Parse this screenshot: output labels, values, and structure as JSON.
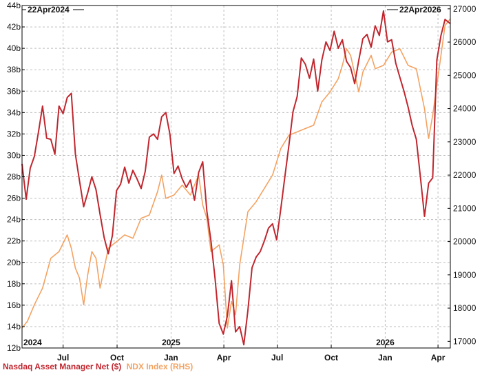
{
  "colors": {
    "left_series": "#c0262e",
    "right_series": "#f4a261",
    "grid": "#bdbdbd",
    "frame": "#000000"
  },
  "header": {
    "start_date": "22Apr2024",
    "end_date": "22Apr2026"
  },
  "chart_data": {
    "type": "line",
    "title": "",
    "xlabel": "",
    "x_range": [
      "2024-04-22",
      "2026-04-22"
    ],
    "x_ticks": [
      {
        "date": "2024-07-01",
        "label": "Jul"
      },
      {
        "date": "2024-10-01",
        "label": "Oct"
      },
      {
        "date": "2025-01-01",
        "label": "Jan"
      },
      {
        "date": "2025-04-01",
        "label": "Apr"
      },
      {
        "date": "2025-07-01",
        "label": "Jul"
      },
      {
        "date": "2025-10-01",
        "label": "Oct"
      },
      {
        "date": "2026-01-01",
        "label": "Jan"
      },
      {
        "date": "2026-04-01",
        "label": "Apr"
      }
    ],
    "year_labels": [
      {
        "date": "2024-04-22",
        "label": "2024"
      },
      {
        "date": "2025-01-01",
        "label": "2025"
      },
      {
        "date": "2026-01-01",
        "label": "2026"
      }
    ],
    "left_axis": {
      "ylim": [
        12,
        44
      ],
      "ticks": [
        12,
        14,
        16,
        18,
        20,
        22,
        24,
        26,
        28,
        30,
        32,
        34,
        36,
        38,
        40,
        42,
        44
      ],
      "tick_labels": [
        "12b",
        "14b",
        "16b",
        "18b",
        "20b",
        "22b",
        "24b",
        "26b",
        "28b",
        "30b",
        "32b",
        "34b",
        "36b",
        "38b",
        "40b",
        "42b",
        "44b"
      ]
    },
    "right_axis": {
      "ylim": [
        16800,
        27100
      ],
      "ticks": [
        17000,
        18000,
        19000,
        20000,
        21000,
        22000,
        23000,
        24000,
        25000,
        26000,
        27000
      ],
      "tick_labels": [
        "17000",
        "18000",
        "19000",
        "20000",
        "21000",
        "22000",
        "23000",
        "24000",
        "25000",
        "26000",
        "27000"
      ]
    },
    "grid": true,
    "legend_position": "bottom-left",
    "series": [
      {
        "name": "Nasdaq Asset Manager Net ($)",
        "axis": "left",
        "color": "#c0262e",
        "points": [
          [
            "2024-04-22",
            29.2
          ],
          [
            "2024-04-29",
            25.9
          ],
          [
            "2024-05-06",
            28.8
          ],
          [
            "2024-05-13",
            29.9
          ],
          [
            "2024-05-20",
            32.2
          ],
          [
            "2024-05-27",
            34.6
          ],
          [
            "2024-06-03",
            31.6
          ],
          [
            "2024-06-10",
            31.5
          ],
          [
            "2024-06-17",
            30.1
          ],
          [
            "2024-06-24",
            34.6
          ],
          [
            "2024-07-01",
            33.9
          ],
          [
            "2024-07-08",
            35.4
          ],
          [
            "2024-07-15",
            35.8
          ],
          [
            "2024-07-22",
            30.1
          ],
          [
            "2024-07-29",
            27.6
          ],
          [
            "2024-08-05",
            25.2
          ],
          [
            "2024-08-12",
            26.5
          ],
          [
            "2024-08-19",
            28.0
          ],
          [
            "2024-08-26",
            26.8
          ],
          [
            "2024-09-02",
            24.5
          ],
          [
            "2024-09-09",
            22.3
          ],
          [
            "2024-09-16",
            20.8
          ],
          [
            "2024-09-23",
            22.5
          ],
          [
            "2024-09-30",
            26.7
          ],
          [
            "2024-10-07",
            27.3
          ],
          [
            "2024-10-14",
            28.9
          ],
          [
            "2024-10-21",
            27.4
          ],
          [
            "2024-10-28",
            28.6
          ],
          [
            "2024-11-04",
            27.8
          ],
          [
            "2024-11-11",
            26.9
          ],
          [
            "2024-11-18",
            28.5
          ],
          [
            "2024-11-25",
            31.7
          ],
          [
            "2024-12-02",
            32.0
          ],
          [
            "2024-12-09",
            31.5
          ],
          [
            "2024-12-16",
            33.6
          ],
          [
            "2024-12-23",
            34.0
          ],
          [
            "2024-12-30",
            32.0
          ],
          [
            "2025-01-06",
            28.3
          ],
          [
            "2025-01-13",
            29.0
          ],
          [
            "2025-01-20",
            27.8
          ],
          [
            "2025-01-27",
            27.0
          ],
          [
            "2025-02-03",
            27.7
          ],
          [
            "2025-02-10",
            25.8
          ],
          [
            "2025-02-17",
            28.4
          ],
          [
            "2025-02-24",
            29.4
          ],
          [
            "2025-03-03",
            24.8
          ],
          [
            "2025-03-10",
            22.0
          ],
          [
            "2025-03-17",
            18.5
          ],
          [
            "2025-03-24",
            14.3
          ],
          [
            "2025-03-31",
            13.3
          ],
          [
            "2025-04-07",
            15.0
          ],
          [
            "2025-04-14",
            18.3
          ],
          [
            "2025-04-21",
            13.5
          ],
          [
            "2025-04-28",
            14.0
          ],
          [
            "2025-05-05",
            12.3
          ],
          [
            "2025-05-12",
            15.5
          ],
          [
            "2025-05-19",
            19.5
          ],
          [
            "2025-05-26",
            20.5
          ],
          [
            "2025-06-02",
            21.0
          ],
          [
            "2025-06-09",
            22.0
          ],
          [
            "2025-06-16",
            23.2
          ],
          [
            "2025-06-23",
            23.6
          ],
          [
            "2025-06-30",
            22.1
          ],
          [
            "2025-07-07",
            25.0
          ],
          [
            "2025-07-14",
            28.0
          ],
          [
            "2025-07-21",
            31.0
          ],
          [
            "2025-07-28",
            34.1
          ],
          [
            "2025-08-04",
            35.5
          ],
          [
            "2025-08-11",
            39.1
          ],
          [
            "2025-08-18",
            38.5
          ],
          [
            "2025-08-25",
            37.2
          ],
          [
            "2025-09-01",
            39.0
          ],
          [
            "2025-09-08",
            36.0
          ],
          [
            "2025-09-15",
            38.9
          ],
          [
            "2025-09-22",
            40.6
          ],
          [
            "2025-09-29",
            39.8
          ],
          [
            "2025-10-06",
            41.6
          ],
          [
            "2025-10-13",
            40.0
          ],
          [
            "2025-10-20",
            40.8
          ],
          [
            "2025-10-27",
            38.8
          ],
          [
            "2025-11-03",
            38.2
          ],
          [
            "2025-11-10",
            36.7
          ],
          [
            "2025-11-17",
            38.9
          ],
          [
            "2025-11-24",
            40.9
          ],
          [
            "2025-12-01",
            41.3
          ],
          [
            "2025-12-08",
            40.1
          ],
          [
            "2025-12-15",
            42.1
          ],
          [
            "2025-12-22",
            41.2
          ],
          [
            "2025-12-29",
            43.5
          ],
          [
            "2026-01-05",
            40.6
          ],
          [
            "2026-01-12",
            40.8
          ],
          [
            "2026-01-19",
            38.6
          ],
          [
            "2026-01-26",
            37.3
          ],
          [
            "2026-02-02",
            36.0
          ],
          [
            "2026-02-09",
            34.5
          ],
          [
            "2026-02-16",
            32.8
          ],
          [
            "2026-02-23",
            31.5
          ],
          [
            "2026-03-02",
            28.0
          ],
          [
            "2026-03-09",
            24.3
          ],
          [
            "2026-03-16",
            27.4
          ],
          [
            "2026-03-23",
            27.9
          ],
          [
            "2026-03-30",
            38.9
          ],
          [
            "2026-04-06",
            41.2
          ],
          [
            "2026-04-13",
            42.7
          ],
          [
            "2026-04-22",
            42.3
          ]
        ]
      },
      {
        "name": "NDX Index (RHS)",
        "axis": "right",
        "color": "#f4a261",
        "points": [
          [
            "2024-04-22",
            17400
          ],
          [
            "2024-05-01",
            17600
          ],
          [
            "2024-05-13",
            18100
          ],
          [
            "2024-05-27",
            18600
          ],
          [
            "2024-06-10",
            19500
          ],
          [
            "2024-06-24",
            19700
          ],
          [
            "2024-07-08",
            20200
          ],
          [
            "2024-07-15",
            19800
          ],
          [
            "2024-07-22",
            19200
          ],
          [
            "2024-07-29",
            18900
          ],
          [
            "2024-08-05",
            18100
          ],
          [
            "2024-08-12",
            19000
          ],
          [
            "2024-08-19",
            19700
          ],
          [
            "2024-08-26",
            19500
          ],
          [
            "2024-09-02",
            18600
          ],
          [
            "2024-09-09",
            19200
          ],
          [
            "2024-09-16",
            19800
          ],
          [
            "2024-09-30",
            20000
          ],
          [
            "2024-10-14",
            20200
          ],
          [
            "2024-10-28",
            20100
          ],
          [
            "2024-11-11",
            20700
          ],
          [
            "2024-11-25",
            20800
          ],
          [
            "2024-12-09",
            21500
          ],
          [
            "2024-12-16",
            22000
          ],
          [
            "2024-12-23",
            21300
          ],
          [
            "2025-01-06",
            21400
          ],
          [
            "2025-01-20",
            21700
          ],
          [
            "2025-02-03",
            21400
          ],
          [
            "2025-02-17",
            22000
          ],
          [
            "2025-02-24",
            21100
          ],
          [
            "2025-03-03",
            20700
          ],
          [
            "2025-03-10",
            19700
          ],
          [
            "2025-03-17",
            19800
          ],
          [
            "2025-03-24",
            19900
          ],
          [
            "2025-03-31",
            19300
          ],
          [
            "2025-04-07",
            17400
          ],
          [
            "2025-04-14",
            18200
          ],
          [
            "2025-04-21",
            17800
          ],
          [
            "2025-04-28",
            19300
          ],
          [
            "2025-05-12",
            20900
          ],
          [
            "2025-05-26",
            21200
          ],
          [
            "2025-06-09",
            21600
          ],
          [
            "2025-06-23",
            22000
          ],
          [
            "2025-07-07",
            22800
          ],
          [
            "2025-07-21",
            23200
          ],
          [
            "2025-08-04",
            23300
          ],
          [
            "2025-08-18",
            23400
          ],
          [
            "2025-09-01",
            23500
          ],
          [
            "2025-09-15",
            24200
          ],
          [
            "2025-09-29",
            24500
          ],
          [
            "2025-10-13",
            24900
          ],
          [
            "2025-10-20",
            25300
          ],
          [
            "2025-10-27",
            25800
          ],
          [
            "2025-11-03",
            25600
          ],
          [
            "2025-11-17",
            24500
          ],
          [
            "2025-11-24",
            25100
          ],
          [
            "2025-12-08",
            25600
          ],
          [
            "2025-12-15",
            25200
          ],
          [
            "2025-12-29",
            25300
          ],
          [
            "2026-01-12",
            25700
          ],
          [
            "2026-01-26",
            25800
          ],
          [
            "2026-02-09",
            25300
          ],
          [
            "2026-02-23",
            25200
          ],
          [
            "2026-03-02",
            24600
          ],
          [
            "2026-03-09",
            24000
          ],
          [
            "2026-03-16",
            23100
          ],
          [
            "2026-03-23",
            23800
          ],
          [
            "2026-03-30",
            24700
          ],
          [
            "2026-04-06",
            25600
          ],
          [
            "2026-04-13",
            26500
          ],
          [
            "2026-04-22",
            26700
          ]
        ]
      }
    ]
  }
}
